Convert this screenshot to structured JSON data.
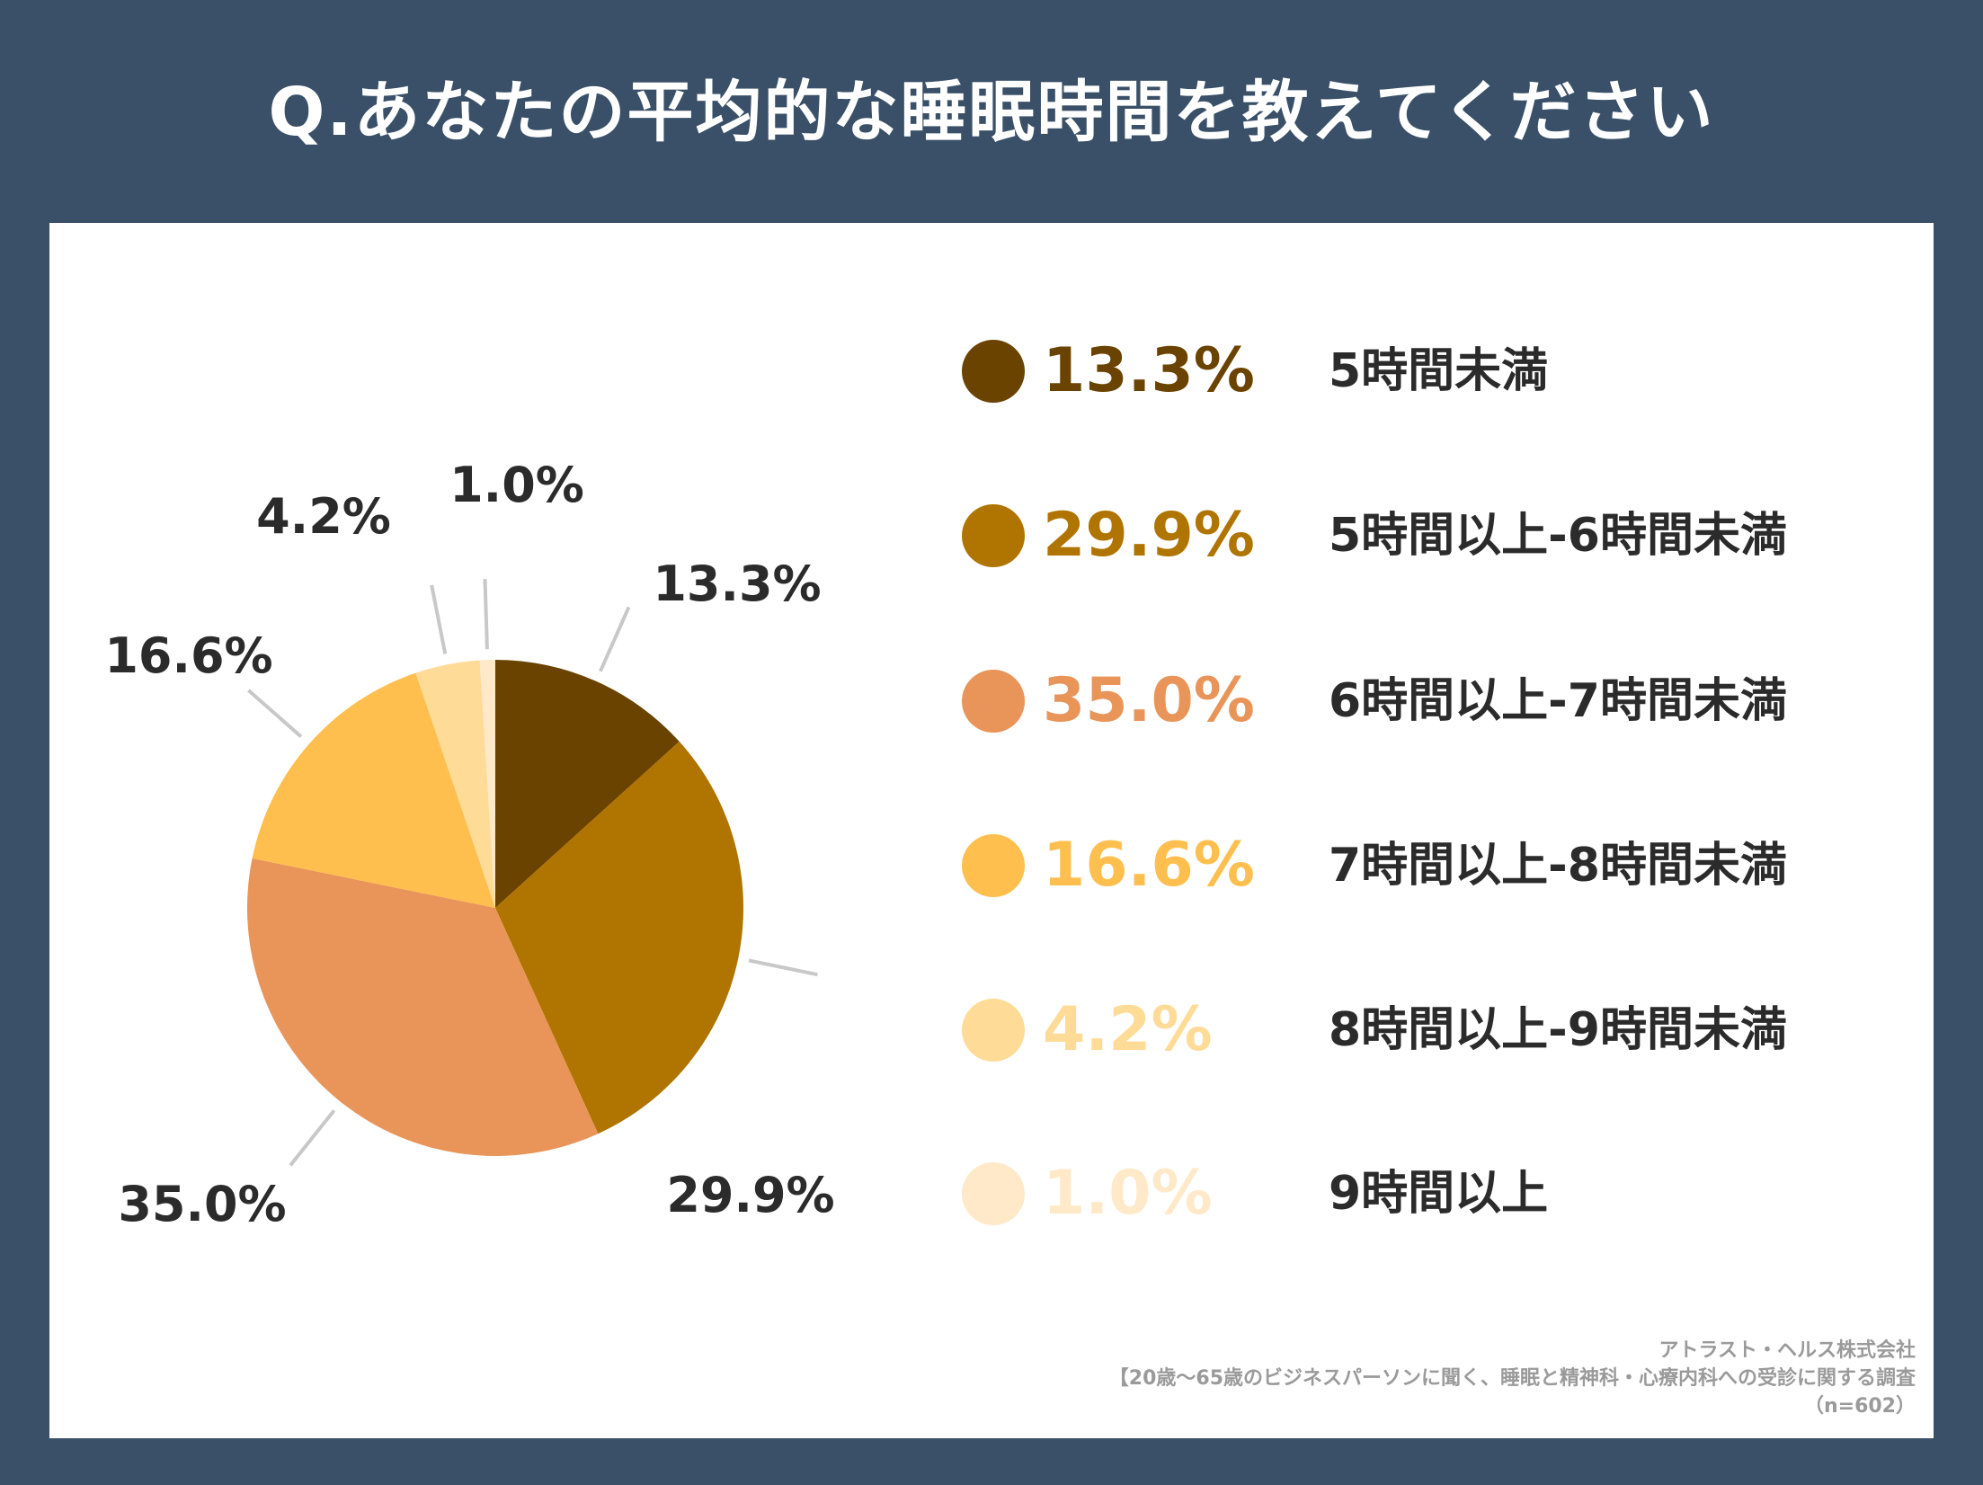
{
  "title": "Q.あなたの平均的な睡眠時間を教えてください",
  "chart_data": {
    "type": "pie",
    "title": "Q.あなたの平均的な睡眠時間を教えてください",
    "categories": [
      "5時間未満",
      "5時間以上-6時間未満",
      "6時間以上-7時間未満",
      "7時間以上-8時間未満",
      "8時間以上-9時間未満",
      "9時間以上"
    ],
    "values": [
      13.3,
      29.9,
      35.0,
      16.6,
      4.2,
      1.0
    ],
    "value_labels": [
      "13.3%",
      "29.9%",
      "35.0%",
      "16.6%",
      "4.2%",
      "1.0%"
    ],
    "colors": [
      "#6b4300",
      "#b07400",
      "#e9955a",
      "#ffbf4e",
      "#ffdb98",
      "#ffe9c9"
    ],
    "start_angle": "12 o'clock",
    "direction": "clockwise",
    "legend_position": "right"
  },
  "source": {
    "line1": "アトラスト・ヘルス株式会社",
    "line2": "【20歳～65歳のビジネスパーソンに聞く、睡眠と精神科・心療内科への受診に関する調査",
    "line3": "（n=602）"
  }
}
